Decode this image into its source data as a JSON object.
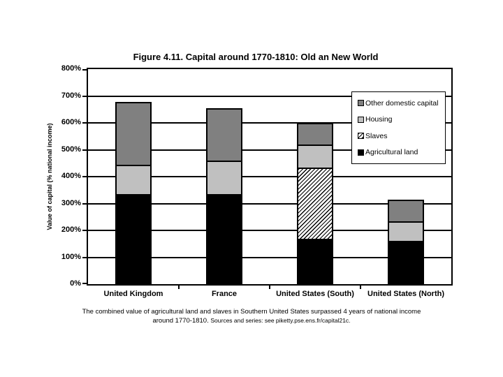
{
  "title": "Figure 4.11. Capital around 1770-1810: Old an New World",
  "caption": {
    "line1": "The combined value of agricultural land and slaves in Southern United States surpassed 4 years of national income",
    "line2_main": "around 1770-1810.",
    "line2_sources": "Sources and series: see piketty.pse.ens.fr/capital21c."
  },
  "colors": {
    "agricultural_land": "#000000",
    "slaves_hatch_foreground": "#000000",
    "slaves_hatch_background": "#ffffff",
    "housing": "#c0c0c0",
    "other_domestic_capital": "#808080",
    "axis": "#000000",
    "background": "#ffffff"
  },
  "chart_data": {
    "type": "bar",
    "stacked": true,
    "title": "Figure 4.11. Capital around 1770-1810: Old an New World",
    "xlabel": "",
    "ylabel": "Value of capital (% national income)",
    "ylim": [
      0,
      800
    ],
    "ytick_step": 100,
    "ytick_suffix": "%",
    "grid": true,
    "legend_position": "upper right",
    "categories": [
      "United Kingdom",
      "France",
      "United States (South)",
      "United States (North)"
    ],
    "series": [
      {
        "name": "Agricultural land",
        "pattern": "solid",
        "color": "#000000",
        "values": [
          335,
          335,
          170,
          160
        ]
      },
      {
        "name": "Slaves",
        "pattern": "hatch",
        "color": "#ffffff",
        "values": [
          0,
          0,
          265,
          0
        ]
      },
      {
        "name": "Housing",
        "pattern": "solid",
        "color": "#c0c0c0",
        "values": [
          110,
          125,
          85,
          75
        ]
      },
      {
        "name": "Other domestic capital",
        "pattern": "solid",
        "color": "#808080",
        "values": [
          235,
          195,
          80,
          80
        ]
      }
    ],
    "totals": [
      680,
      655,
      600,
      315
    ],
    "legend_order_top_to_bottom": [
      "Other domestic capital",
      "Housing",
      "Slaves",
      "Agricultural land"
    ]
  }
}
